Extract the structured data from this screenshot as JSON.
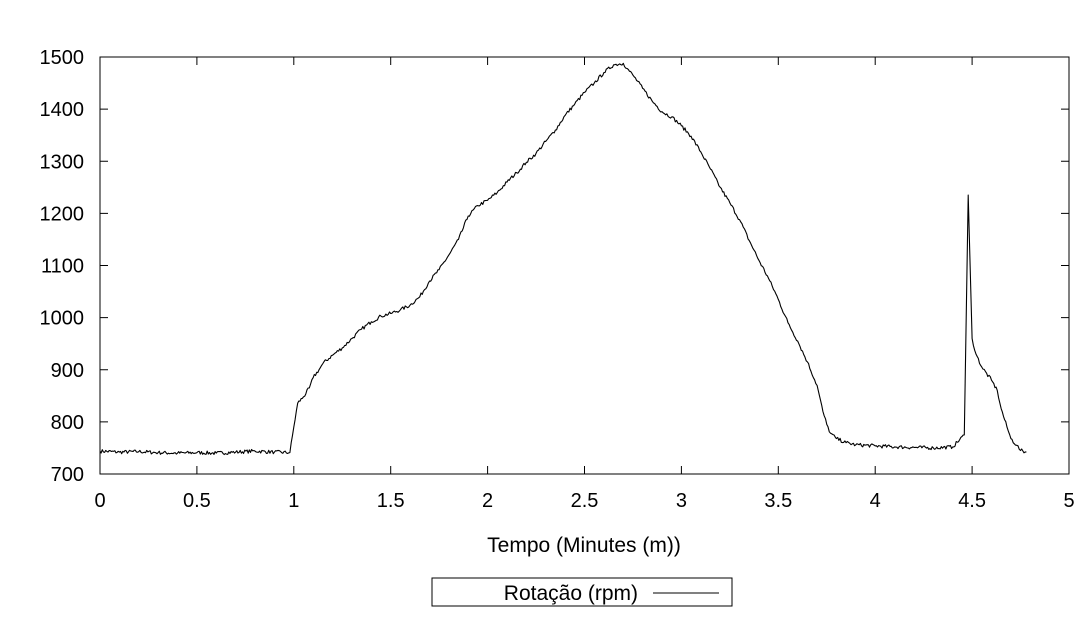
{
  "chart_data": {
    "type": "line",
    "title": "",
    "xlabel": "Tempo (Minutes (m))",
    "ylabel": "",
    "xlim": [
      0,
      5
    ],
    "ylim": [
      700,
      1500
    ],
    "xticks": [
      0,
      0.5,
      1,
      1.5,
      2,
      2.5,
      3,
      3.5,
      4,
      4.5,
      5
    ],
    "xtick_labels": [
      "0",
      "0.5",
      "1",
      "1.5",
      "2",
      "2.5",
      "3",
      "3.5",
      "4",
      "4.5",
      "5"
    ],
    "yticks": [
      700,
      800,
      900,
      1000,
      1100,
      1200,
      1300,
      1400,
      1500
    ],
    "ytick_labels": [
      "700",
      "800",
      "900",
      "1000",
      "1100",
      "1200",
      "1300",
      "1400",
      "1500"
    ],
    "grid": false,
    "legend": {
      "position": "bottom-center",
      "entries": [
        "Rotação (rpm)"
      ]
    },
    "series": [
      {
        "name": "Rotação (rpm)",
        "color": "#000000",
        "x": [
          0,
          0.1,
          0.2,
          0.3,
          0.4,
          0.5,
          0.6,
          0.7,
          0.8,
          0.9,
          0.98,
          1.0,
          1.02,
          1.05,
          1.08,
          1.1,
          1.13,
          1.15,
          1.2,
          1.25,
          1.3,
          1.35,
          1.4,
          1.45,
          1.5,
          1.55,
          1.6,
          1.65,
          1.7,
          1.75,
          1.8,
          1.85,
          1.9,
          1.95,
          2.0,
          2.05,
          2.1,
          2.15,
          2.2,
          2.25,
          2.3,
          2.35,
          2.4,
          2.45,
          2.5,
          2.55,
          2.6,
          2.65,
          2.7,
          2.72,
          2.75,
          2.8,
          2.85,
          2.9,
          2.95,
          3.0,
          3.05,
          3.1,
          3.15,
          3.2,
          3.25,
          3.3,
          3.35,
          3.4,
          3.45,
          3.5,
          3.55,
          3.6,
          3.65,
          3.7,
          3.73,
          3.75,
          3.77,
          3.8,
          3.85,
          3.9,
          4.0,
          4.1,
          4.2,
          4.3,
          4.4,
          4.46,
          4.48,
          4.5,
          4.52,
          4.55,
          4.6,
          4.63,
          4.65,
          4.68,
          4.7,
          4.73,
          4.75,
          4.78
        ],
        "y": [
          744,
          742,
          743,
          741,
          740,
          741,
          740,
          742,
          744,
          742,
          741,
          790,
          836,
          848,
          865,
          885,
          900,
          912,
          928,
          942,
          960,
          978,
          992,
          1003,
          1008,
          1015,
          1024,
          1040,
          1070,
          1092,
          1120,
          1150,
          1195,
          1215,
          1225,
          1240,
          1260,
          1278,
          1298,
          1315,
          1338,
          1360,
          1388,
          1410,
          1432,
          1450,
          1470,
          1485,
          1488,
          1478,
          1465,
          1440,
          1415,
          1395,
          1385,
          1368,
          1348,
          1318,
          1285,
          1250,
          1220,
          1188,
          1148,
          1110,
          1075,
          1035,
          990,
          955,
          915,
          870,
          820,
          795,
          778,
          768,
          760,
          756,
          754,
          752,
          751,
          750,
          752,
          775,
          1235,
          960,
          930,
          905,
          880,
          860,
          825,
          790,
          768,
          755,
          745,
          742
        ]
      }
    ]
  }
}
